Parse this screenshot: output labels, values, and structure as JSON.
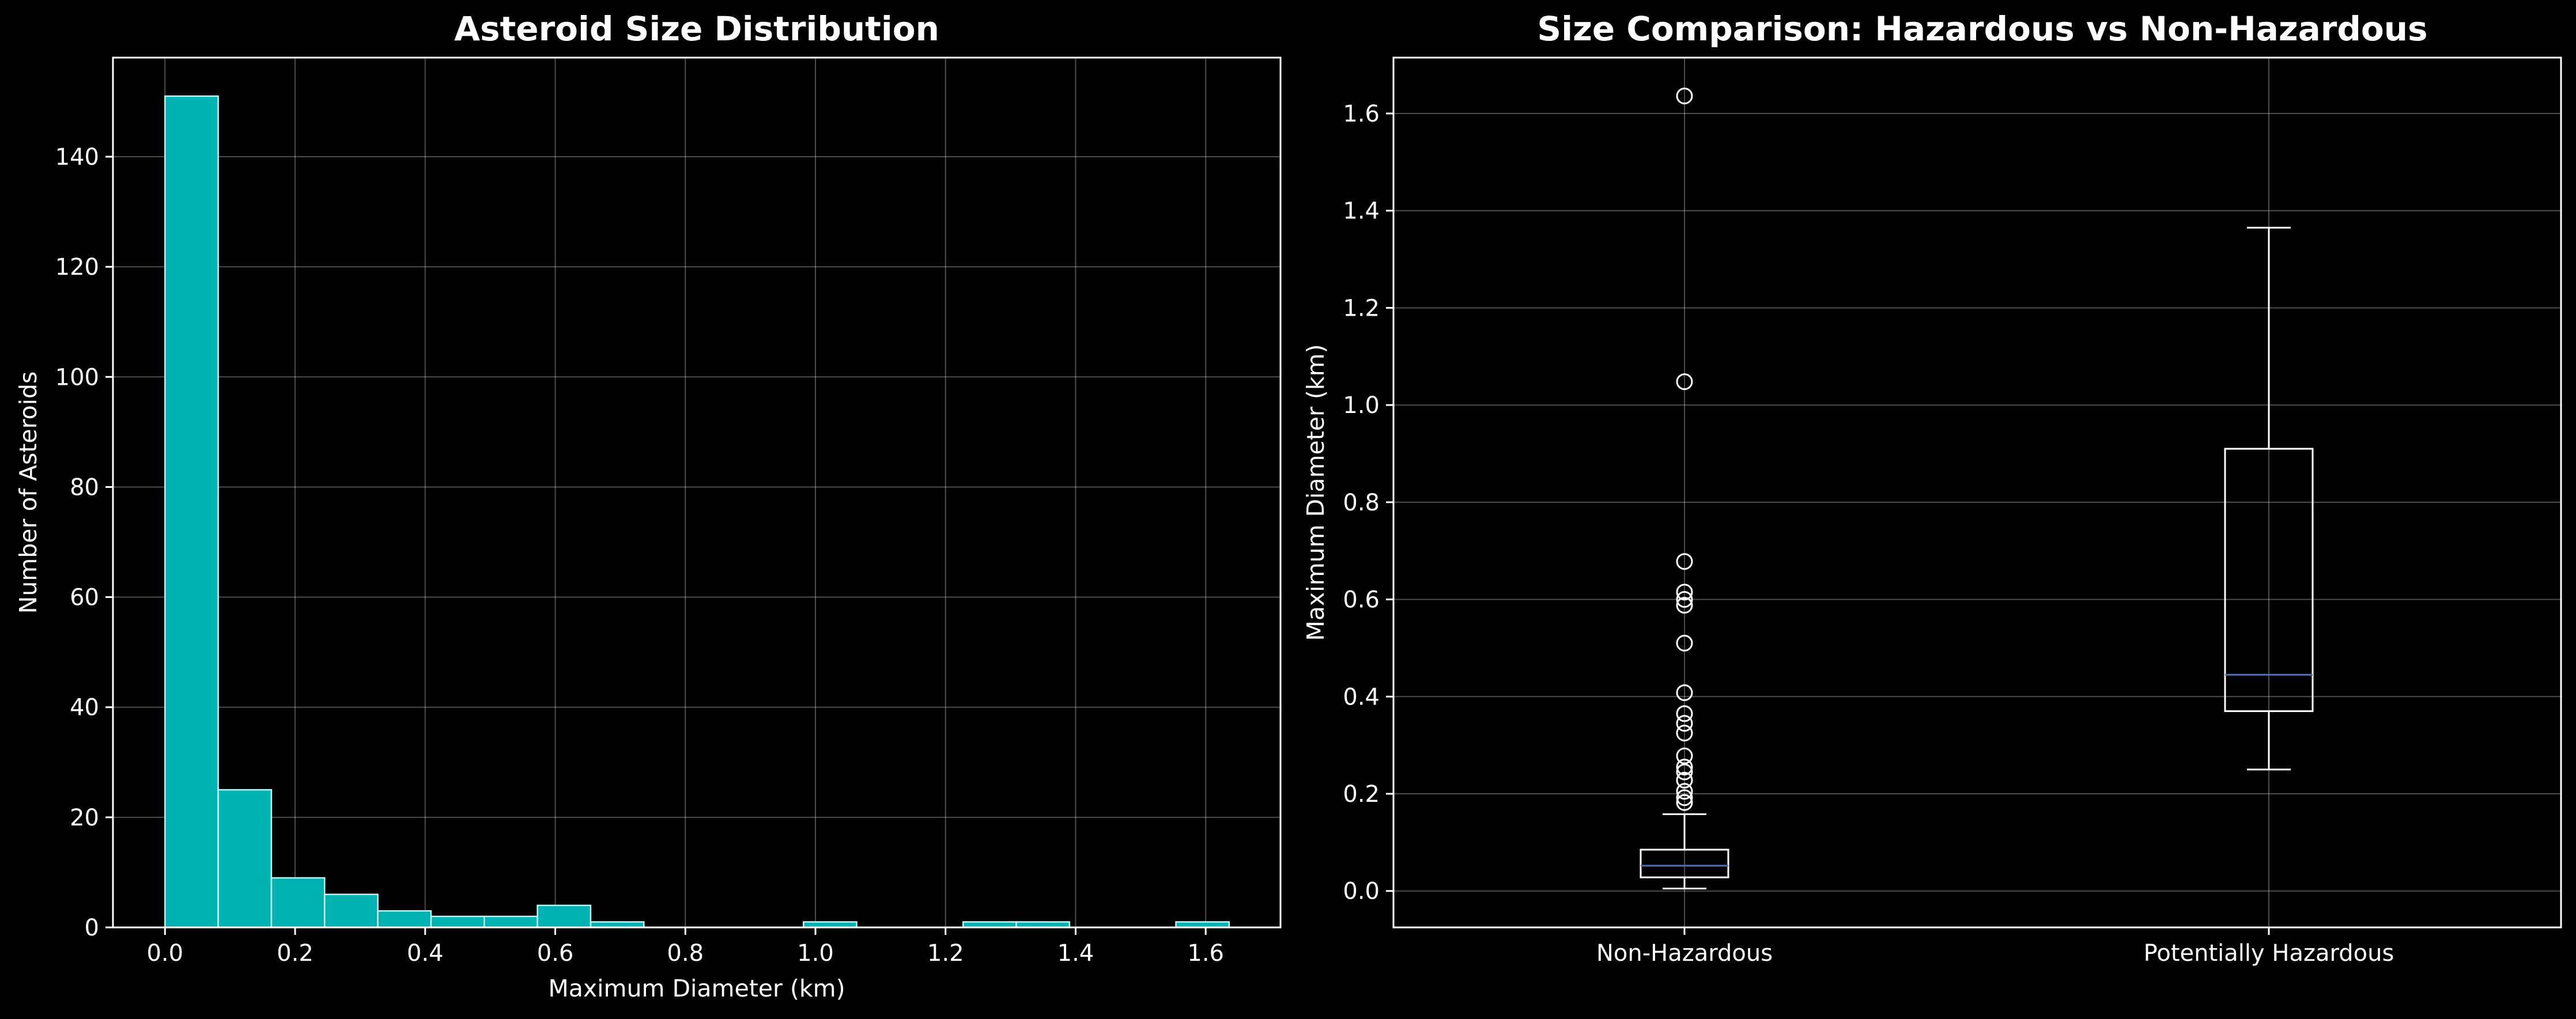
{
  "chart_data": [
    {
      "type": "bar",
      "subtype": "histogram",
      "title": "Asteroid Size Distribution",
      "xlabel": "Maximum Diameter (km)",
      "ylabel": "Number of Asteroids",
      "xlim": [
        -0.08,
        1.715
      ],
      "ylim": [
        0,
        158
      ],
      "xticks": [
        0.0,
        0.2,
        0.4,
        0.6,
        0.8,
        1.0,
        1.2,
        1.4,
        1.6
      ],
      "xtick_labels": [
        "0.0",
        "0.2",
        "0.4",
        "0.6",
        "0.8",
        "1.0",
        "1.2",
        "1.4",
        "1.6"
      ],
      "yticks": [
        0,
        20,
        40,
        60,
        80,
        100,
        120,
        140
      ],
      "ytick_labels": [
        "0",
        "20",
        "40",
        "60",
        "80",
        "100",
        "120",
        "140"
      ],
      "bin_edges": [
        0.0,
        0.0818,
        0.1636,
        0.2454,
        0.3272,
        0.409,
        0.4908,
        0.5726,
        0.6544,
        0.7362,
        0.818,
        0.8998,
        0.9816,
        1.0634,
        1.1452,
        1.227,
        1.3088,
        1.3906,
        1.4724,
        1.5542,
        1.636
      ],
      "values": [
        151,
        25,
        9,
        6,
        3,
        2,
        2,
        4,
        1,
        0,
        0,
        0,
        1,
        0,
        0,
        1,
        1,
        0,
        0,
        1
      ],
      "bar_color": "#00b3b3",
      "edge_color": "#cceeee",
      "grid": true
    },
    {
      "type": "box",
      "title": "Size Comparison: Hazardous vs Non-Hazardous",
      "ylabel": "Maximum Diameter (km)",
      "ylim": [
        -0.075,
        1.715
      ],
      "yticks": [
        0.0,
        0.2,
        0.4,
        0.6,
        0.8,
        1.0,
        1.2,
        1.4,
        1.6
      ],
      "ytick_labels": [
        "0.0",
        "0.2",
        "0.4",
        "0.6",
        "0.8",
        "1.0",
        "1.2",
        "1.4",
        "1.6"
      ],
      "categories": [
        "Non-Hazardous",
        "Potentially Hazardous"
      ],
      "boxes": [
        {
          "whisker_low": 0.005,
          "q1": 0.028,
          "median": 0.052,
          "q3": 0.085,
          "whisker_high": 0.158,
          "outliers": [
            1.636,
            1.048,
            0.678,
            0.615,
            0.6,
            0.588,
            0.51,
            0.408,
            0.365,
            0.345,
            0.325,
            0.278,
            0.255,
            0.245,
            0.228,
            0.205,
            0.192,
            0.182
          ]
        },
        {
          "whisker_low": 0.25,
          "q1": 0.37,
          "median": 0.445,
          "q3": 0.91,
          "whisker_high": 1.365,
          "outliers": []
        }
      ],
      "median_color": "#4c72b0",
      "grid": true
    }
  ]
}
